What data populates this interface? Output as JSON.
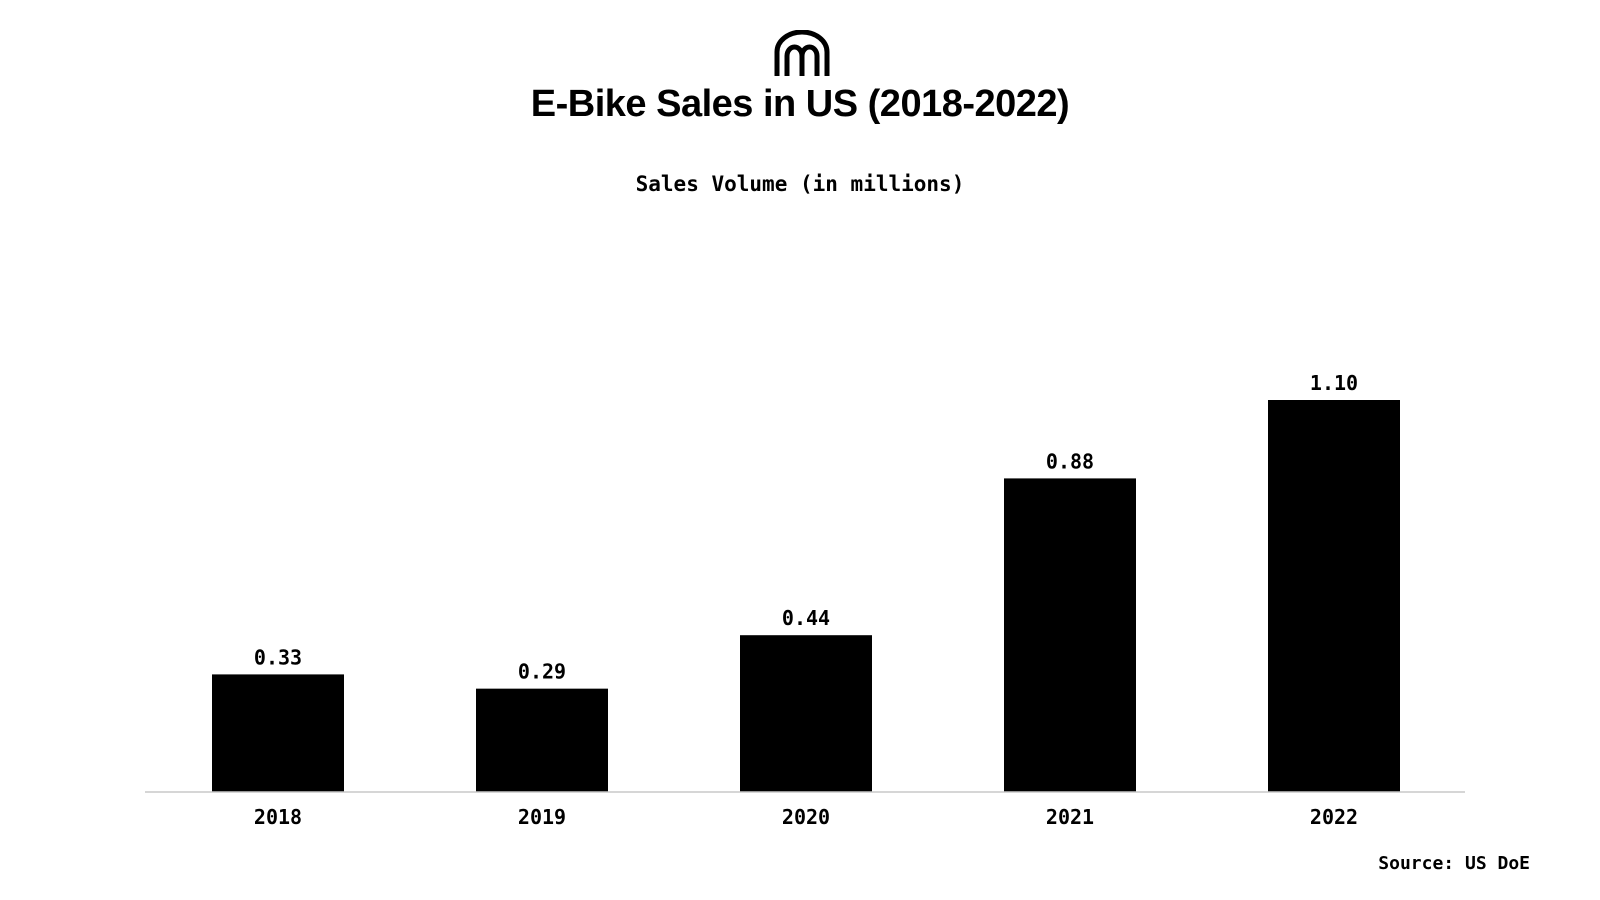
{
  "header": {
    "logo_icon": "arches-logo-icon",
    "title": "E-Bike Sales in US (2018-2022)",
    "subtitle": "Sales Volume (in millions)"
  },
  "footer": {
    "source": "Source: US DoE"
  },
  "colors": {
    "bar": "#000000",
    "axis": "#c8c8c8",
    "background": "#ffffff"
  },
  "chart_data": {
    "type": "bar",
    "categories": [
      "2018",
      "2019",
      "2020",
      "2021",
      "2022"
    ],
    "values": [
      0.33,
      0.29,
      0.44,
      0.88,
      1.1
    ],
    "value_labels": [
      "0.33",
      "0.29",
      "0.44",
      "0.88",
      "1.10"
    ],
    "title": "E-Bike Sales in US (2018-2022)",
    "subtitle": "Sales Volume (in millions)",
    "xlabel": "",
    "ylabel": "",
    "ylim": [
      0,
      1.1
    ],
    "grid": false,
    "legend": "none"
  }
}
